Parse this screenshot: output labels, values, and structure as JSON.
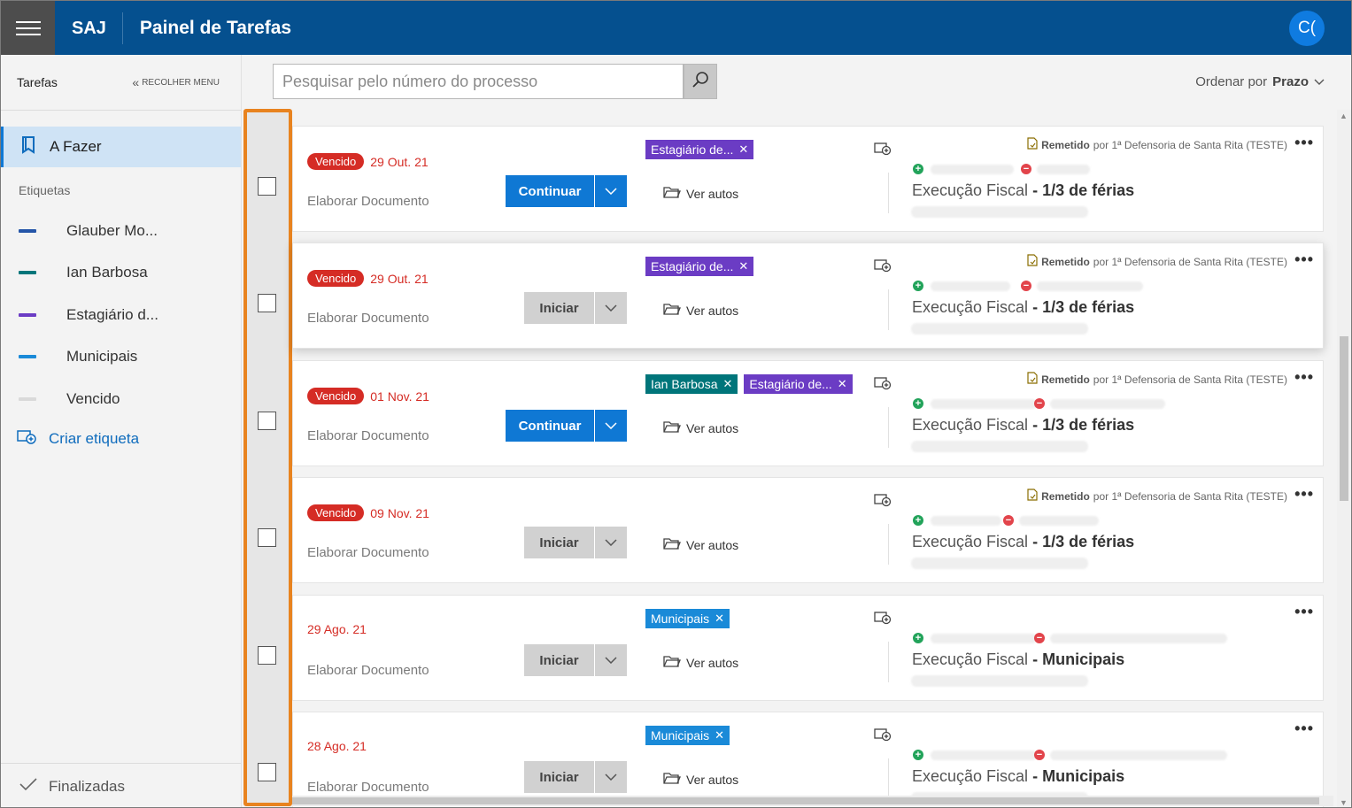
{
  "header": {
    "brand": "SAJ",
    "title": "Painel de Tarefas",
    "avatar_initials": "C("
  },
  "sidebar": {
    "title": "Tarefas",
    "collapse_label": "RECOLHER MENU",
    "todo_label": "A Fazer",
    "tags_section_label": "Etiquetas",
    "tags": [
      {
        "label": "Glauber Mo...",
        "color": "#2455a8"
      },
      {
        "label": "Ian Barbosa",
        "color": "#00757a"
      },
      {
        "label": "Estagiário d...",
        "color": "#6b3cc4"
      },
      {
        "label": "Municipais",
        "color": "#1a8ad8"
      },
      {
        "label": "Vencido",
        "color": "#d9d9d9"
      }
    ],
    "create_tag_label": "Criar etiqueta",
    "finished_label": "Finalizadas"
  },
  "toolbar": {
    "search_placeholder": "Pesquisar pelo número do processo",
    "sort_prefix": "Ordenar por",
    "sort_value": "Prazo"
  },
  "colors": {
    "header_bg": "#05508f",
    "primary": "#0f78d4",
    "overdue": "#d52c25",
    "highlight_frame": "#e8831f"
  },
  "common": {
    "overdue_badge": "Vencido",
    "task_name": "Elaborar Documento",
    "ver_autos": "Ver autos",
    "remetido_label": "Remetido",
    "remetido_by": "por 1ª Defensoria de Santa Rita (TESTE)",
    "case_class": "Execução Fiscal",
    "separator": "-"
  },
  "tasks": [
    {
      "overdue": true,
      "date": "29 Out. 21",
      "action": "Continuar",
      "tags": [
        {
          "label": "Estagiário de...",
          "color": "#6b3cc4"
        }
      ],
      "remetido": true,
      "subject": "1/3 de férias"
    },
    {
      "overdue": true,
      "date": "29 Out. 21",
      "action": "Iniciar",
      "tags": [
        {
          "label": "Estagiário de...",
          "color": "#6b3cc4"
        }
      ],
      "remetido": true,
      "subject": "1/3 de férias"
    },
    {
      "overdue": true,
      "date": "01 Nov. 21",
      "action": "Continuar",
      "tags": [
        {
          "label": "Ian Barbosa",
          "color": "#00757a"
        },
        {
          "label": "Estagiário de...",
          "color": "#6b3cc4"
        }
      ],
      "remetido": true,
      "subject": "1/3 de férias"
    },
    {
      "overdue": true,
      "date": "09 Nov. 21",
      "action": "Iniciar",
      "tags": [],
      "remetido": true,
      "subject": "1/3 de férias"
    },
    {
      "overdue": false,
      "date": "29 Ago. 21",
      "action": "Iniciar",
      "tags": [
        {
          "label": "Municipais",
          "color": "#1a8ad8"
        }
      ],
      "remetido": false,
      "subject": "Municipais"
    },
    {
      "overdue": false,
      "date": "28 Ago. 21",
      "action": "Iniciar",
      "tags": [
        {
          "label": "Municipais",
          "color": "#1a8ad8"
        }
      ],
      "remetido": false,
      "subject": "Municipais"
    }
  ]
}
